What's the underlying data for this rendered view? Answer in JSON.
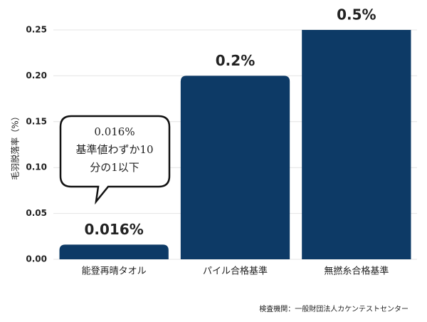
{
  "chart_data": {
    "type": "bar",
    "y_label": "毛羽脱落率（%）",
    "categories": [
      "能登再晴タオル",
      "パイル合格基準",
      "無撚糸合格基準"
    ],
    "values": [
      0.016,
      0.2,
      0.5
    ],
    "value_labels": [
      "0.016%",
      "0.2%",
      "0.5%"
    ],
    "color": "#0d3a66",
    "ylim": [
      0,
      0.25
    ],
    "yticks": [
      {
        "value": 0,
        "label": "0.00"
      },
      {
        "value": 0.05,
        "label": "0.05"
      },
      {
        "value": 0.1,
        "label": "0.10"
      },
      {
        "value": 0.15,
        "label": "0.15"
      },
      {
        "value": 0.2,
        "label": "0.20"
      },
      {
        "value": 0.25,
        "label": "0.25"
      }
    ],
    "grid": true,
    "annotation": [
      "0.016%",
      "基準値わずか10",
      "分の1以下"
    ],
    "source": "検査機関：一般財団法人カケンテストセンター"
  }
}
